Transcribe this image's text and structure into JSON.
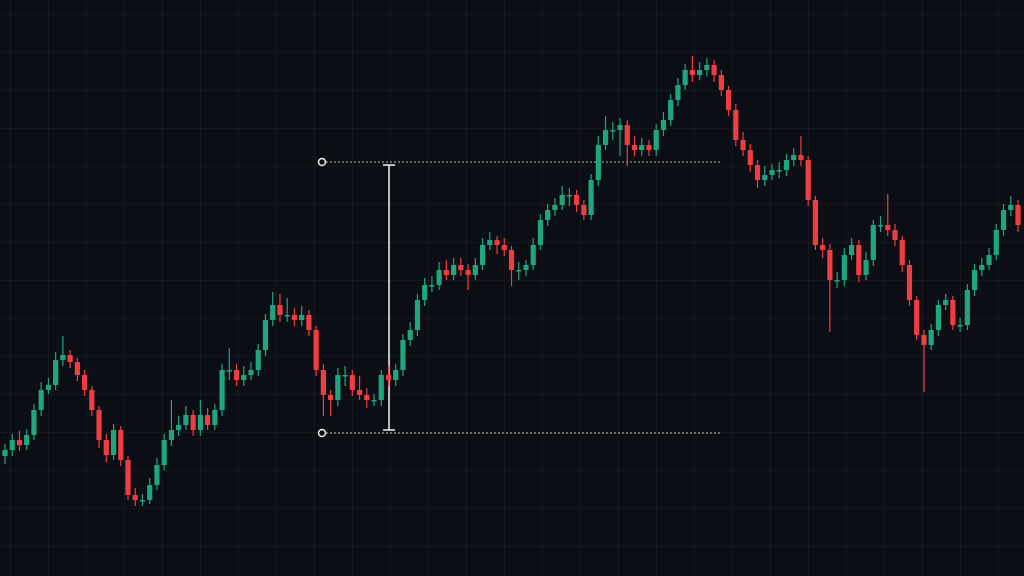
{
  "chart_data": {
    "type": "candlestick",
    "ylim": [
      0,
      576
    ],
    "up_color": "#1fa67f",
    "down_color": "#ef3e42",
    "open": [
      120,
      126,
      136,
      131,
      141,
      166,
      186,
      191,
      216,
      221,
      214,
      201,
      186,
      166,
      136,
      121,
      146,
      116,
      81,
      76,
      76,
      91,
      111,
      136,
      146,
      151,
      161,
      146,
      161,
      151,
      166,
      206,
      206,
      196,
      201,
      206,
      226,
      256,
      271,
      261,
      261,
      256,
      261,
      246,
      206,
      181,
      176,
      201,
      201,
      186,
      181,
      176,
      176,
      201,
      196,
      206,
      236,
      246,
      276,
      291,
      291,
      306,
      301,
      311,
      306,
      301,
      311,
      331,
      336,
      331,
      326,
      306,
      306,
      311,
      331,
      356,
      366,
      371,
      381,
      381,
      371,
      361,
      396,
      431,
      446,
      446,
      451,
      431,
      426,
      431,
      426,
      446,
      456,
      476,
      491,
      506,
      501,
      506,
      511,
      501,
      486,
      466,
      436,
      426,
      411,
      396,
      401,
      406,
      406,
      416,
      421,
      416,
      376,
      331,
      326,
      296,
      296,
      321,
      331,
      301,
      316,
      351,
      351,
      346,
      336,
      311,
      276,
      241,
      231,
      246,
      271,
      276,
      251,
      251,
      286,
      306,
      311,
      321,
      346,
      366,
      371
    ],
    "high": [
      132,
      142,
      145,
      147,
      172,
      194,
      198,
      224,
      240,
      226,
      218,
      206,
      190,
      170,
      142,
      152,
      150,
      120,
      88,
      82,
      98,
      118,
      142,
      176,
      160,
      170,
      166,
      176,
      168,
      172,
      212,
      228,
      212,
      210,
      214,
      232,
      262,
      284,
      282,
      278,
      268,
      270,
      266,
      250,
      212,
      186,
      208,
      210,
      206,
      200,
      188,
      182,
      206,
      210,
      212,
      242,
      254,
      282,
      298,
      300,
      314,
      316,
      318,
      318,
      312,
      318,
      338,
      344,
      340,
      338,
      330,
      314,
      316,
      338,
      362,
      372,
      378,
      390,
      388,
      386,
      376,
      402,
      440,
      460,
      454,
      458,
      456,
      440,
      438,
      436,
      452,
      464,
      482,
      498,
      512,
      520,
      514,
      518,
      516,
      506,
      490,
      472,
      444,
      432,
      416,
      410,
      412,
      414,
      422,
      428,
      440,
      420,
      380,
      338,
      332,
      304,
      328,
      338,
      336,
      324,
      356,
      360,
      382,
      352,
      340,
      316,
      280,
      246,
      252,
      276,
      282,
      280,
      258,
      292,
      312,
      318,
      328,
      352,
      372,
      380,
      376
    ],
    "low": [
      112,
      120,
      125,
      126,
      136,
      160,
      182,
      186,
      210,
      208,
      195,
      180,
      160,
      128,
      114,
      116,
      110,
      76,
      70,
      70,
      72,
      86,
      106,
      130,
      140,
      146,
      140,
      140,
      146,
      146,
      160,
      196,
      190,
      190,
      196,
      200,
      220,
      250,
      254,
      254,
      250,
      250,
      240,
      200,
      160,
      160,
      170,
      190,
      180,
      176,
      168,
      170,
      170,
      190,
      190,
      200,
      230,
      240,
      270,
      284,
      286,
      296,
      296,
      300,
      286,
      296,
      306,
      326,
      322,
      320,
      290,
      296,
      300,
      306,
      326,
      350,
      360,
      366,
      370,
      364,
      356,
      356,
      390,
      426,
      436,
      420,
      410,
      420,
      420,
      420,
      420,
      440,
      450,
      470,
      486,
      494,
      496,
      500,
      494,
      480,
      460,
      430,
      420,
      404,
      388,
      390,
      396,
      398,
      400,
      410,
      410,
      370,
      326,
      318,
      244,
      288,
      290,
      316,
      294,
      296,
      310,
      344,
      340,
      330,
      304,
      270,
      236,
      184,
      226,
      240,
      266,
      246,
      244,
      246,
      280,
      300,
      306,
      316,
      340,
      360,
      344
    ],
    "close": [
      126,
      136,
      131,
      141,
      166,
      186,
      191,
      216,
      221,
      214,
      201,
      186,
      166,
      136,
      121,
      146,
      116,
      81,
      76,
      76,
      91,
      111,
      136,
      146,
      151,
      161,
      146,
      161,
      151,
      166,
      206,
      206,
      196,
      201,
      206,
      226,
      256,
      271,
      261,
      261,
      256,
      261,
      246,
      206,
      181,
      176,
      201,
      201,
      186,
      181,
      176,
      176,
      201,
      196,
      206,
      236,
      246,
      276,
      291,
      291,
      306,
      301,
      311,
      306,
      301,
      311,
      331,
      336,
      331,
      326,
      306,
      306,
      311,
      331,
      356,
      366,
      371,
      381,
      381,
      371,
      361,
      396,
      431,
      446,
      446,
      451,
      431,
      426,
      431,
      426,
      446,
      456,
      476,
      491,
      506,
      501,
      506,
      511,
      501,
      486,
      466,
      436,
      426,
      411,
      396,
      401,
      406,
      406,
      416,
      421,
      416,
      376,
      331,
      326,
      296,
      296,
      321,
      331,
      301,
      316,
      351,
      351,
      346,
      336,
      311,
      276,
      241,
      231,
      246,
      271,
      276,
      251,
      251,
      286,
      306,
      311,
      321,
      346,
      366,
      371,
      351
    ],
    "measure": {
      "low": 143,
      "high": 414
    }
  }
}
